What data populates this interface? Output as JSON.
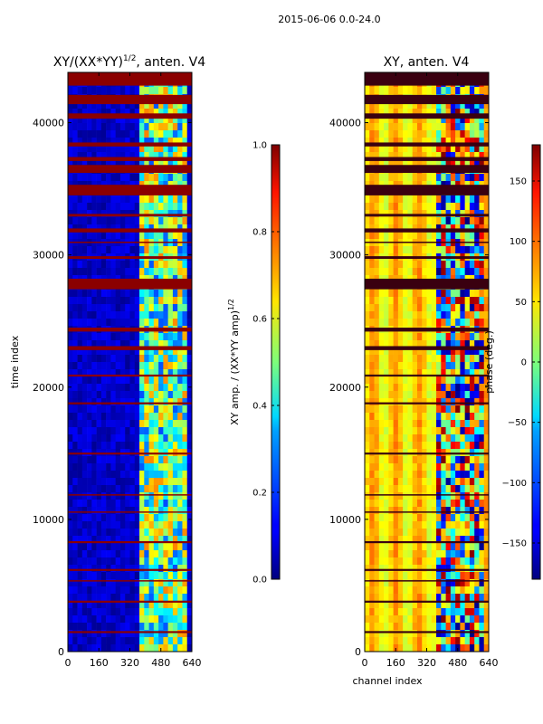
{
  "suptitle": "2015-06-06 0.0-24.0",
  "chart_data": [
    {
      "type": "heatmap",
      "title_base": "XY/(XX*YY)",
      "title_exp": "1/2",
      "title_suffix": ", anten. V4",
      "xlabel": "",
      "ylabel": "time index",
      "xlim": [
        0,
        640
      ],
      "ylim": [
        0,
        43800
      ],
      "xticks": [
        "0",
        "160",
        "320",
        "480",
        "640"
      ],
      "yticks": [
        "0",
        "10000",
        "20000",
        "30000",
        "40000"
      ],
      "colorbar": {
        "label_base": "XY amp. / (XX*YY amp)",
        "label_exp": "1/2",
        "range": [
          0.0,
          1.0
        ],
        "ticks": [
          "0.0",
          "0.2",
          "0.4",
          "0.6",
          "0.8",
          "1.0"
        ],
        "colormap": "jet"
      },
      "flagged_bands_time": [
        [
          42800,
          43800
        ],
        [
          41400,
          42100
        ],
        [
          40300,
          40700
        ],
        [
          38200,
          38500
        ],
        [
          37100,
          37400
        ],
        [
          36200,
          36800
        ],
        [
          34500,
          35300
        ],
        [
          32900,
          33100
        ],
        [
          31700,
          32000
        ],
        [
          30900,
          31000
        ],
        [
          29700,
          29900
        ],
        [
          27400,
          28200
        ],
        [
          24200,
          24500
        ],
        [
          22800,
          23100
        ],
        [
          20800,
          20950
        ],
        [
          18700,
          18850
        ],
        [
          14900,
          15050
        ],
        [
          11800,
          11900
        ],
        [
          10500,
          10600
        ],
        [
          8200,
          8350
        ],
        [
          6100,
          6250
        ],
        [
          5300,
          5400
        ],
        [
          3700,
          3850
        ],
        [
          1400,
          1550
        ]
      ],
      "rfi_channel_range": [
        360,
        620
      ]
    },
    {
      "type": "heatmap",
      "title_base": "XY, anten. V4",
      "title_exp": "",
      "title_suffix": "",
      "xlabel": "channel index",
      "ylabel": "",
      "xlim": [
        0,
        640
      ],
      "ylim": [
        0,
        43800
      ],
      "xticks": [
        "0",
        "160",
        "320",
        "480",
        "640"
      ],
      "yticks": [
        "0",
        "10000",
        "20000",
        "30000",
        "40000"
      ],
      "colorbar": {
        "label_base": "phase (deg.)",
        "label_exp": "",
        "range": [
          -180,
          180
        ],
        "ticks": [
          "−150",
          "−100",
          "−50",
          "0",
          "50",
          "100",
          "150"
        ],
        "tick_values": [
          -150,
          -100,
          -50,
          0,
          50,
          100,
          150
        ],
        "colormap": "jet"
      },
      "flagged_bands_time": [
        [
          42800,
          43800
        ],
        [
          41400,
          42100
        ],
        [
          40300,
          40700
        ],
        [
          38200,
          38500
        ],
        [
          37100,
          37400
        ],
        [
          36200,
          36800
        ],
        [
          34500,
          35300
        ],
        [
          32900,
          33100
        ],
        [
          31700,
          32000
        ],
        [
          30900,
          31000
        ],
        [
          29700,
          29900
        ],
        [
          27400,
          28200
        ],
        [
          24200,
          24500
        ],
        [
          22800,
          23100
        ],
        [
          20800,
          20950
        ],
        [
          18700,
          18850
        ],
        [
          14900,
          15050
        ],
        [
          11800,
          11900
        ],
        [
          10500,
          10600
        ],
        [
          8200,
          8350
        ],
        [
          6100,
          6250
        ],
        [
          5300,
          5400
        ],
        [
          3700,
          3850
        ],
        [
          1400,
          1550
        ]
      ],
      "rfi_channel_range": [
        360,
        620
      ]
    }
  ]
}
